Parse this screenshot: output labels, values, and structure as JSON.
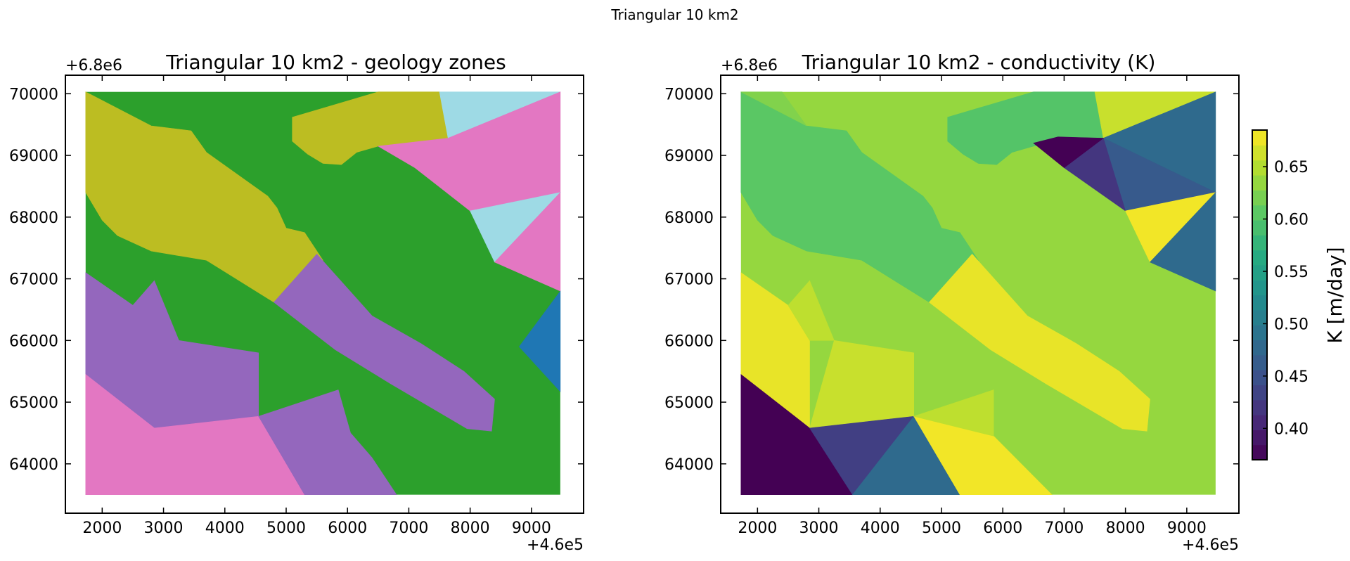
{
  "figure": {
    "suptitle": "Triangular 10 km2"
  },
  "chart_data": [
    {
      "type": "heatmap",
      "title": "Triangular 10 km2 - geology zones",
      "xlabel": "",
      "ylabel": "",
      "x_offset_label": "+4.6e5",
      "y_offset_label": "+6.8e6",
      "x_ticks": [
        2000,
        3000,
        4000,
        5000,
        6000,
        7000,
        8000,
        9000
      ],
      "y_ticks": [
        64000,
        65000,
        66000,
        67000,
        68000,
        69000,
        70000
      ],
      "xlim": [
        1400,
        9850
      ],
      "ylim": [
        63200,
        70300
      ],
      "data_extent": {
        "x": [
          1730,
          9470
        ],
        "y": [
          63500,
          70030
        ]
      },
      "grid": false,
      "background_color": "#2ca02c",
      "zones": [
        {
          "name": "olive",
          "color": "#bcbd22",
          "points": [
            [
              1730,
              70030
            ],
            [
              2800,
              69480
            ],
            [
              3450,
              69400
            ],
            [
              3700,
              69050
            ],
            [
              4700,
              68340
            ],
            [
              4850,
              68150
            ],
            [
              5000,
              67820
            ],
            [
              5300,
              67750
            ],
            [
              5600,
              67300
            ],
            [
              5600,
              67100
            ],
            [
              5300,
              66950
            ],
            [
              4800,
              66620
            ],
            [
              3700,
              67300
            ],
            [
              2800,
              67450
            ],
            [
              2250,
              67700
            ],
            [
              2000,
              67950
            ],
            [
              1730,
              68400
            ]
          ]
        },
        {
          "name": "olive",
          "color": "#bcbd22",
          "points": [
            [
              6500,
              70030
            ],
            [
              7500,
              70030
            ],
            [
              7640,
              69280
            ],
            [
              6500,
              69150
            ],
            [
              6150,
              69050
            ],
            [
              5900,
              68850
            ],
            [
              5600,
              68870
            ],
            [
              5350,
              69020
            ],
            [
              5100,
              69230
            ],
            [
              5100,
              69620
            ]
          ]
        },
        {
          "name": "light-blue",
          "color": "#9edae5",
          "points": [
            [
              7500,
              70030
            ],
            [
              9470,
              70030
            ],
            [
              7640,
              69280
            ]
          ]
        },
        {
          "name": "pink",
          "color": "#e377c2",
          "points": [
            [
              9470,
              70030
            ],
            [
              9470,
              68400
            ],
            [
              8000,
              68100
            ],
            [
              7100,
              68800
            ],
            [
              6500,
              69150
            ],
            [
              7640,
              69280
            ]
          ]
        },
        {
          "name": "light-blue",
          "color": "#9edae5",
          "points": [
            [
              9470,
              68400
            ],
            [
              8400,
              67270
            ],
            [
              8000,
              68100
            ]
          ]
        },
        {
          "name": "pink",
          "color": "#e377c2",
          "points": [
            [
              9470,
              68400
            ],
            [
              9470,
              66800
            ],
            [
              8400,
              67270
            ]
          ]
        },
        {
          "name": "blue",
          "color": "#1f77b4",
          "points": [
            [
              9470,
              66800
            ],
            [
              9470,
              65170
            ],
            [
              8800,
              65900
            ]
          ]
        },
        {
          "name": "purple",
          "color": "#9467bd",
          "points": [
            [
              4800,
              66620
            ],
            [
              5500,
              67400
            ],
            [
              6400,
              66400
            ],
            [
              7200,
              65950
            ],
            [
              7900,
              65500
            ],
            [
              8400,
              65050
            ],
            [
              8350,
              64530
            ],
            [
              7950,
              64570
            ],
            [
              6700,
              65300
            ],
            [
              5800,
              65850
            ]
          ]
        },
        {
          "name": "purple",
          "color": "#9467bd",
          "points": [
            [
              1730,
              67100
            ],
            [
              2500,
              66570
            ],
            [
              2850,
              66970
            ],
            [
              3250,
              66000
            ],
            [
              4550,
              65800
            ],
            [
              4550,
              64770
            ],
            [
              2850,
              64580
            ],
            [
              1730,
              65450
            ]
          ]
        },
        {
          "name": "pink",
          "color": "#e377c2",
          "points": [
            [
              1730,
              65450
            ],
            [
              2850,
              64580
            ],
            [
              4550,
              64770
            ],
            [
              5300,
              63500
            ],
            [
              1730,
              63500
            ]
          ]
        },
        {
          "name": "purple",
          "color": "#9467bd",
          "points": [
            [
              4550,
              64770
            ],
            [
              5850,
              65200
            ],
            [
              6050,
              64500
            ],
            [
              6400,
              64100
            ],
            [
              6800,
              63500
            ],
            [
              5300,
              63500
            ]
          ]
        }
      ]
    },
    {
      "type": "heatmap",
      "title": "Triangular 10 km2 - conductivity (K)",
      "xlabel": "",
      "ylabel": "",
      "x_offset_label": "+4.6e5",
      "y_offset_label": "+6.8e6",
      "x_ticks": [
        2000,
        3000,
        4000,
        5000,
        6000,
        7000,
        8000,
        9000
      ],
      "y_ticks": [
        64000,
        65000,
        66000,
        67000,
        68000,
        69000,
        70000
      ],
      "xlim": [
        1400,
        9850
      ],
      "ylim": [
        63200,
        70300
      ],
      "data_extent": {
        "x": [
          1730,
          9470
        ],
        "y": [
          63500,
          70030
        ]
      },
      "grid": false,
      "background_value": 0.635,
      "colorbar": {
        "label": "K [m/day]",
        "range": [
          0.37,
          0.685
        ],
        "ticks": [
          0.4,
          0.45,
          0.5,
          0.55,
          0.6,
          0.65
        ],
        "tick_labels": [
          "0.40",
          "0.45",
          "0.50",
          "0.55",
          "0.60",
          "0.65"
        ],
        "levels": 22
      },
      "zones": [
        {
          "value": 0.605,
          "points": [
            [
              1730,
              70030
            ],
            [
              2800,
              69480
            ],
            [
              3450,
              69400
            ],
            [
              3700,
              69050
            ],
            [
              4700,
              68340
            ],
            [
              4850,
              68150
            ],
            [
              5000,
              67820
            ],
            [
              5300,
              67750
            ],
            [
              5600,
              67300
            ],
            [
              5600,
              67100
            ],
            [
              5300,
              66950
            ],
            [
              4800,
              66620
            ],
            [
              3700,
              67300
            ],
            [
              2800,
              67450
            ],
            [
              2250,
              67700
            ],
            [
              2000,
              67950
            ],
            [
              1730,
              68400
            ]
          ]
        },
        {
          "value": 0.625,
          "points": [
            [
              1730,
              70030
            ],
            [
              2400,
              70030
            ],
            [
              2800,
              69480
            ]
          ]
        },
        {
          "value": 0.6,
          "points": [
            [
              6500,
              70030
            ],
            [
              7500,
              70030
            ],
            [
              7640,
              69280
            ],
            [
              6500,
              69150
            ],
            [
              6150,
              69050
            ],
            [
              5900,
              68850
            ],
            [
              5600,
              68870
            ],
            [
              5350,
              69020
            ],
            [
              5100,
              69230
            ],
            [
              5100,
              69620
            ]
          ]
        },
        {
          "value": 0.66,
          "points": [
            [
              7500,
              70030
            ],
            [
              9470,
              70030
            ],
            [
              7640,
              69280
            ]
          ]
        },
        {
          "value": 0.48,
          "points": [
            [
              9470,
              70030
            ],
            [
              9470,
              68400
            ],
            [
              7640,
              69280
            ]
          ]
        },
        {
          "value": 0.46,
          "points": [
            [
              7640,
              69280
            ],
            [
              9470,
              68400
            ],
            [
              8000,
              68100
            ]
          ]
        },
        {
          "value": 0.42,
          "points": [
            [
              7640,
              69280
            ],
            [
              8000,
              68100
            ],
            [
              7000,
              68800
            ]
          ]
        },
        {
          "value": 0.37,
          "points": [
            [
              6500,
              69200
            ],
            [
              6900,
              69300
            ],
            [
              7640,
              69280
            ],
            [
              7000,
              68800
            ]
          ]
        },
        {
          "value": 0.68,
          "points": [
            [
              9470,
              68400
            ],
            [
              8400,
              67270
            ],
            [
              8000,
              68100
            ]
          ]
        },
        {
          "value": 0.48,
          "points": [
            [
              9470,
              68400
            ],
            [
              9470,
              66800
            ],
            [
              8400,
              67270
            ]
          ]
        },
        {
          "value": 0.675,
          "points": [
            [
              4800,
              66620
            ],
            [
              5500,
              67400
            ],
            [
              6400,
              66400
            ],
            [
              7200,
              65950
            ],
            [
              7900,
              65500
            ],
            [
              8400,
              65050
            ],
            [
              8350,
              64530
            ],
            [
              7950,
              64570
            ],
            [
              6700,
              65300
            ],
            [
              5800,
              65850
            ]
          ]
        },
        {
          "value": 0.675,
          "points": [
            [
              1730,
              67100
            ],
            [
              2500,
              66570
            ],
            [
              2850,
              66000
            ],
            [
              2850,
              64580
            ],
            [
              1730,
              65450
            ]
          ]
        },
        {
          "value": 0.655,
          "points": [
            [
              2500,
              66570
            ],
            [
              2850,
              66970
            ],
            [
              3250,
              66000
            ],
            [
              2850,
              66000
            ]
          ]
        },
        {
          "value": 0.66,
          "points": [
            [
              3250,
              66000
            ],
            [
              4550,
              65800
            ],
            [
              4550,
              64770
            ],
            [
              2850,
              64580
            ]
          ]
        },
        {
          "value": 0.37,
          "points": [
            [
              1730,
              65450
            ],
            [
              2850,
              64580
            ],
            [
              3550,
              63500
            ],
            [
              1730,
              63500
            ]
          ]
        },
        {
          "value": 0.43,
          "points": [
            [
              2850,
              64580
            ],
            [
              4550,
              64770
            ],
            [
              3550,
              63500
            ]
          ]
        },
        {
          "value": 0.48,
          "points": [
            [
              4550,
              64770
            ],
            [
              5300,
              63500
            ],
            [
              3550,
              63500
            ]
          ]
        },
        {
          "value": 0.68,
          "points": [
            [
              4550,
              64770
            ],
            [
              5850,
              64450
            ],
            [
              6800,
              63500
            ],
            [
              5300,
              63500
            ]
          ]
        },
        {
          "value": 0.655,
          "points": [
            [
              4550,
              64770
            ],
            [
              5850,
              65200
            ],
            [
              5850,
              64450
            ]
          ]
        }
      ]
    }
  ]
}
